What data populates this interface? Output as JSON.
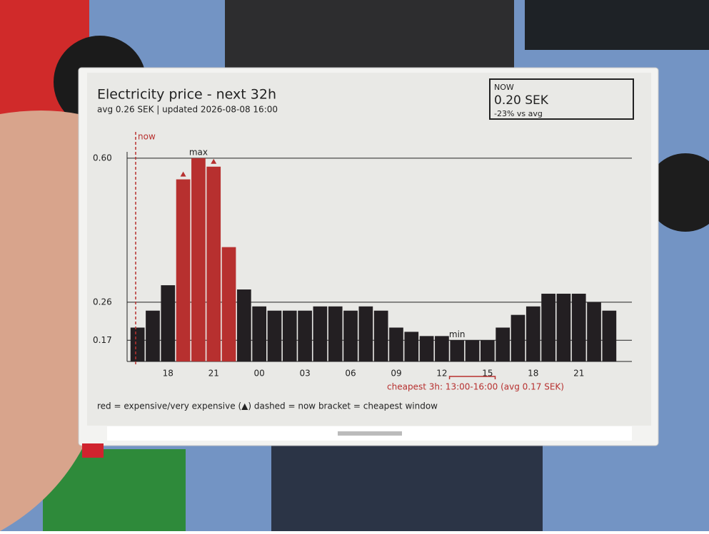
{
  "chart_data": {
    "type": "bar",
    "title": "Electricity price - next 32h",
    "subtitle": "avg 0.26 SEK | updated 2026-08-08 16:00",
    "now_box": {
      "heading": "NOW",
      "price": "0.20 SEK",
      "delta": "-23% vs avg"
    },
    "annotations": {
      "now": "now",
      "max": "max",
      "min": "min",
      "cheapest": "cheapest 3h: 13:00-16:00 (avg 0.17 SEK)"
    },
    "legend_text": "red = expensive/very expensive (▲)   dashed = now   bracket = cheapest window",
    "categories": [
      null,
      null,
      "18",
      null,
      null,
      "21",
      null,
      null,
      "00",
      null,
      null,
      "03",
      null,
      null,
      "06",
      null,
      null,
      "09",
      null,
      null,
      "12",
      null,
      null,
      "15",
      null,
      null,
      "18",
      null,
      null,
      "21",
      null,
      null
    ],
    "values": [
      0.2,
      0.24,
      0.3,
      0.55,
      0.6,
      0.58,
      0.39,
      0.29,
      0.25,
      0.24,
      0.24,
      0.24,
      0.25,
      0.25,
      0.24,
      0.25,
      0.24,
      0.2,
      0.19,
      0.18,
      0.18,
      0.17,
      0.17,
      0.17,
      0.2,
      0.23,
      0.25,
      0.28,
      0.28,
      0.28,
      0.26,
      0.24
    ],
    "colors": [
      "#231f22",
      "#231f22",
      "#231f22",
      "#b7302f",
      "#b7302f",
      "#b7302f",
      "#b7302f",
      "#231f22",
      "#231f22",
      "#231f22",
      "#231f22",
      "#231f22",
      "#231f22",
      "#231f22",
      "#231f22",
      "#231f22",
      "#231f22",
      "#231f22",
      "#231f22",
      "#231f22",
      "#231f22",
      "#231f22",
      "#231f22",
      "#231f22",
      "#231f22",
      "#231f22",
      "#231f22",
      "#231f22",
      "#231f22",
      "#231f22",
      "#231f22",
      "#231f22"
    ],
    "markers": [
      3,
      5
    ],
    "max_index": 4,
    "min_index": 21,
    "now_index": 0,
    "cheapest_window": [
      21,
      23
    ],
    "ylim": [
      0.12,
      0.62
    ],
    "yticks": [
      {
        "value": 0.6,
        "label": "0.60"
      },
      0.26,
      0.17
    ],
    "grid": true
  }
}
